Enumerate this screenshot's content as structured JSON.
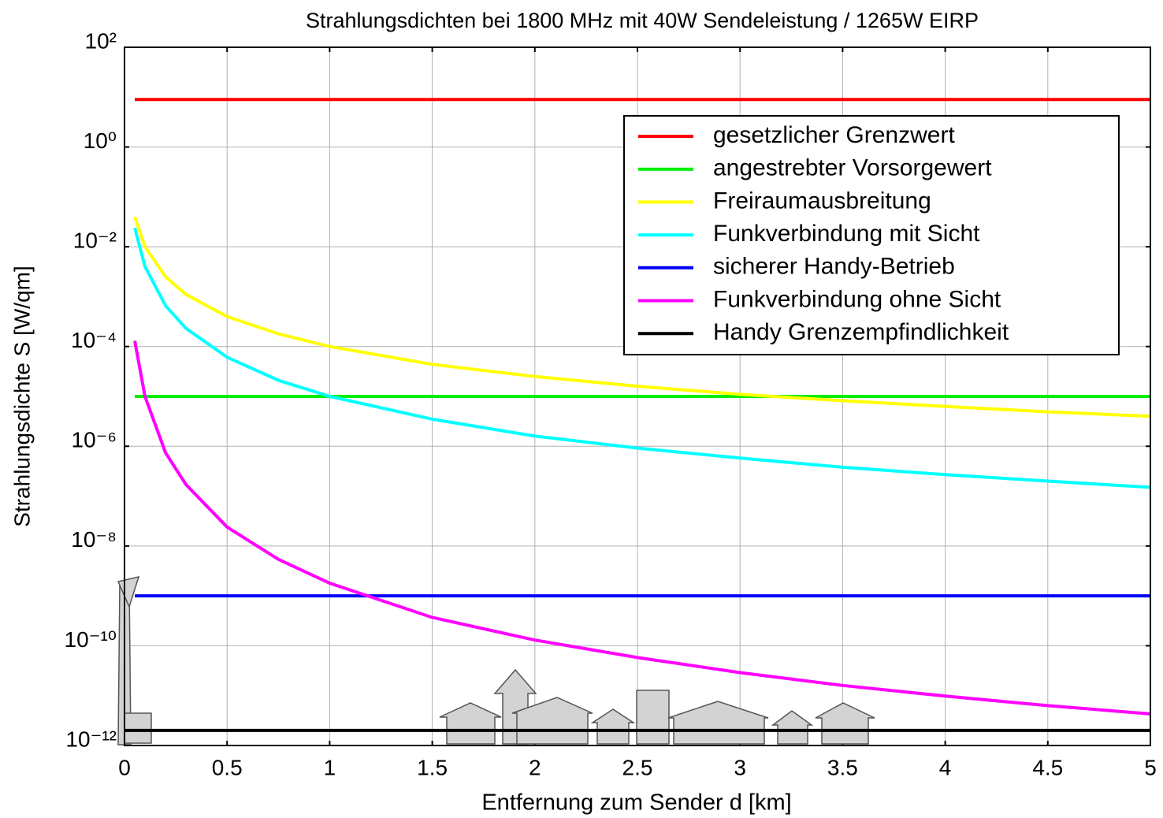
{
  "chart_data": {
    "type": "line",
    "title": "Strahlungsdichten bei 1800 MHz mit 40W Sendeleistung / 1265W EIRP",
    "xlabel": "Entfernung zum Sender d [km]",
    "ylabel": "Strahlungsdichte S [W/qm]",
    "xlim": [
      0,
      5
    ],
    "xticks": [
      0,
      0.5,
      1,
      1.5,
      2,
      2.5,
      3,
      3.5,
      4,
      4.5,
      5
    ],
    "ylim": [
      1e-12,
      100
    ],
    "yscale": "log",
    "yticks": [
      {
        "value": 100,
        "label": "10²"
      },
      {
        "value": 1,
        "label": "10⁰"
      },
      {
        "value": 0.01,
        "label": "10⁻²"
      },
      {
        "value": 0.0001,
        "label": "10⁻⁴"
      },
      {
        "value": 1e-06,
        "label": "10⁻⁶"
      },
      {
        "value": 1e-08,
        "label": "10⁻⁸"
      },
      {
        "value": 1e-10,
        "label": "10⁻¹⁰"
      },
      {
        "value": 1e-12,
        "label": "10⁻¹²"
      }
    ],
    "grid": true,
    "legend": "upper right",
    "series": [
      {
        "name": "gesetzlicher Grenzwert",
        "color": "#ff0000",
        "x": [
          0.05,
          5
        ],
        "values": [
          9,
          9
        ]
      },
      {
        "name": "angestrebter Vorsorgewert",
        "color": "#00ee00",
        "x": [
          0.05,
          5
        ],
        "values": [
          1e-05,
          1e-05
        ]
      },
      {
        "name": "Freiraumausbreitung",
        "color": "#ffff00",
        "x": [
          0.05,
          0.1,
          0.2,
          0.3,
          0.5,
          0.75,
          1,
          1.5,
          2,
          2.5,
          3,
          3.5,
          4,
          4.5,
          5
        ],
        "values": [
          0.04,
          0.01,
          0.0025,
          0.0011,
          0.0004,
          0.00018,
          0.0001,
          4.4e-05,
          2.5e-05,
          1.6e-05,
          1.1e-05,
          8.2e-06,
          6.3e-06,
          4.9e-06,
          4e-06
        ]
      },
      {
        "name": "Funkverbindung mit Sicht",
        "color": "#00ffff",
        "x": [
          0.05,
          0.1,
          0.2,
          0.3,
          0.5,
          0.75,
          1,
          1.5,
          2,
          2.5,
          3,
          3.5,
          4,
          4.5,
          5
        ],
        "values": [
          0.024,
          0.004,
          0.00066,
          0.00023,
          6.1e-05,
          2.1e-05,
          1e-05,
          3.5e-06,
          1.6e-06,
          9.2e-07,
          5.8e-07,
          3.8e-07,
          2.7e-07,
          2e-07,
          1.5e-07
        ]
      },
      {
        "name": "sicherer Handy-Betrieb",
        "color": "#0000ff",
        "x": [
          0.05,
          5
        ],
        "values": [
          1e-09,
          1e-09
        ]
      },
      {
        "name": "Funkverbindung ohne Sicht",
        "color": "#ff00ff",
        "x": [
          0.05,
          0.1,
          0.2,
          0.3,
          0.5,
          0.75,
          1,
          1.5,
          2,
          2.5,
          3,
          3.5,
          4,
          4.5,
          5
        ],
        "values": [
          0.00013,
          1e-05,
          7.4e-07,
          1.7e-07,
          2.4e-08,
          5.4e-09,
          1.8e-09,
          3.7e-10,
          1.3e-10,
          5.8e-11,
          2.9e-11,
          1.6e-11,
          9.8e-12,
          6.3e-12,
          4.3e-12
        ]
      },
      {
        "name": "Handy Grenzempfindlichkeit",
        "color": "#000000",
        "x": [
          0,
          5
        ],
        "values": [
          2e-12,
          2e-12
        ]
      }
    ]
  }
}
